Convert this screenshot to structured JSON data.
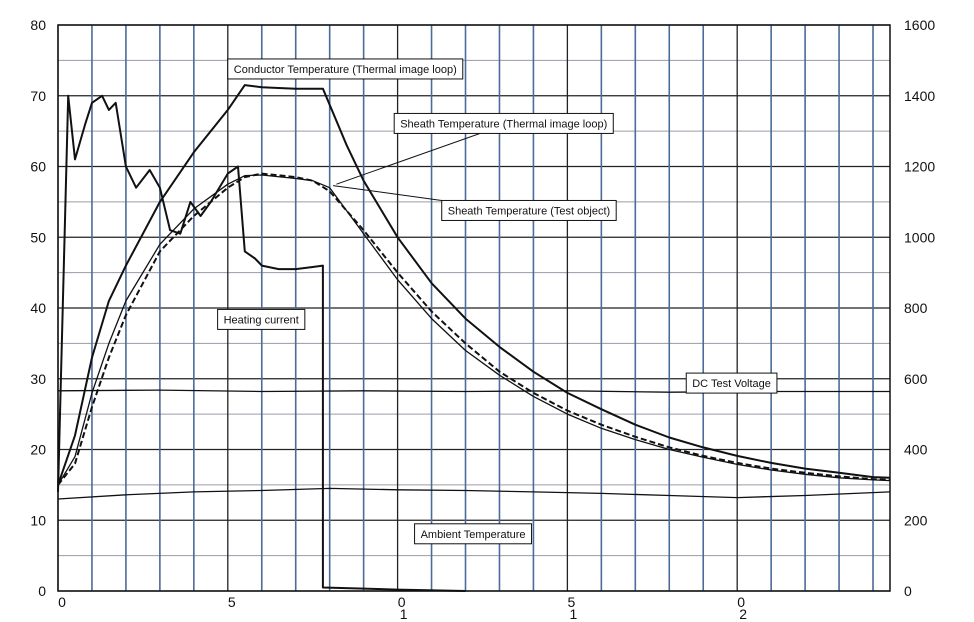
{
  "chart_data": {
    "type": "line",
    "title": "",
    "xlabel": "",
    "ylabel_left": "",
    "ylabel_right": "",
    "grid": true,
    "x_tick_labels": [
      "0",
      "5",
      "0",
      "5",
      "0"
    ],
    "x_tick_sublabels": [
      "",
      "",
      "1",
      "1",
      "2"
    ],
    "x_tick_values": [
      0,
      5,
      10,
      15,
      20
    ],
    "xlim": [
      0,
      24.5
    ],
    "ylim_left": [
      0,
      80
    ],
    "ylim_right": [
      0,
      1600
    ],
    "y_left_ticks": [
      "0",
      "10",
      "20",
      "30",
      "40",
      "50",
      "60",
      "70",
      "80"
    ],
    "y_right_ticks": [
      "0",
      "200",
      "400",
      "600",
      "800",
      "1000",
      "1200",
      "1400",
      "1600"
    ],
    "series": [
      {
        "name": "Conductor Temperature (Thermal image loop)",
        "axis": "left",
        "style": "solid",
        "x": [
          0,
          0.5,
          1,
          1.5,
          2,
          3,
          4,
          5,
          5.5,
          6,
          7,
          7.8,
          8.5,
          9,
          10,
          11,
          12,
          13,
          14,
          15,
          16,
          17,
          18,
          19,
          20,
          21,
          22,
          23,
          24,
          24.5
        ],
        "y": [
          15,
          22,
          33,
          41,
          46,
          55,
          62,
          68,
          71.5,
          71.2,
          71,
          71,
          63,
          58,
          50,
          43.5,
          38.5,
          34.5,
          31,
          28,
          25.7,
          23.5,
          21.7,
          20.3,
          19.1,
          18.1,
          17.3,
          16.7,
          16.1,
          16
        ]
      },
      {
        "name": "Sheath Temperature (Thermal image loop)",
        "axis": "left",
        "style": "dashed",
        "x": [
          0,
          0.5,
          1,
          1.5,
          2,
          3,
          4,
          5,
          5.5,
          6,
          7,
          7.5,
          8,
          9,
          10,
          11,
          12,
          13,
          14,
          15,
          16,
          17,
          18,
          19,
          20,
          21,
          22,
          23,
          24,
          24.5
        ],
        "y": [
          15,
          18,
          26,
          33,
          39,
          48,
          53,
          57,
          58.5,
          59,
          58.5,
          58,
          56.5,
          51,
          45,
          39.5,
          35,
          31,
          28,
          25.5,
          23.5,
          21.8,
          20.3,
          19.1,
          18.1,
          17.3,
          16.7,
          16.2,
          15.8,
          15.7
        ]
      },
      {
        "name": "Sheath Temperature (Test object)",
        "axis": "left",
        "style": "solid-thin",
        "x": [
          0,
          0.5,
          1,
          1.5,
          2,
          3,
          4,
          5,
          5.5,
          6,
          7,
          7.5,
          8,
          9,
          10,
          11,
          12,
          13,
          14,
          15,
          16,
          17,
          18,
          19,
          20,
          21,
          22,
          23,
          24,
          24.5
        ],
        "y": [
          15,
          19,
          28,
          35,
          41,
          49,
          54,
          57.5,
          58.7,
          58.8,
          58.3,
          58,
          57,
          50.5,
          44,
          38.5,
          34,
          30.5,
          27.5,
          25,
          23,
          21.4,
          20,
          18.9,
          17.9,
          17.1,
          16.5,
          16,
          15.7,
          15.6
        ]
      },
      {
        "name": "Heating current",
        "axis": "left",
        "style": "solid",
        "x": [
          0,
          0.3,
          0.5,
          0.8,
          1,
          1.3,
          1.5,
          1.7,
          2,
          2.3,
          2.7,
          3,
          3.3,
          3.6,
          3.9,
          4.2,
          4.5,
          5,
          5.3,
          5.5,
          5.8,
          6,
          6.5,
          7,
          7.5,
          7.8,
          7.8,
          10,
          12
        ],
        "y": [
          14,
          70,
          61,
          66,
          69,
          70,
          68,
          69,
          60,
          57,
          59.5,
          57,
          51,
          50.5,
          55,
          53,
          55,
          59,
          60,
          48,
          47,
          46,
          45.5,
          45.5,
          45.8,
          46,
          0.5,
          0.2,
          0
        ]
      },
      {
        "name": "DC Test Voltage",
        "axis": "left",
        "style": "solid-thin",
        "x": [
          0,
          3,
          6,
          9,
          12,
          15,
          18,
          21,
          24.5
        ],
        "y": [
          28.3,
          28.4,
          28.2,
          28.3,
          28.2,
          28.3,
          28.1,
          28.2,
          28.2
        ]
      },
      {
        "name": "Ambient Temperature",
        "axis": "left",
        "style": "solid-thin",
        "x": [
          0,
          2,
          4,
          6,
          8,
          10,
          12,
          14,
          16,
          18,
          20,
          22,
          24.5
        ],
        "y": [
          13,
          13.6,
          14,
          14.2,
          14.5,
          14.3,
          14.2,
          14,
          13.8,
          13.5,
          13.2,
          13.5,
          14
        ]
      }
    ],
    "annotations": [
      {
        "text": "Conductor Temperature (Thermal image loop)",
        "box_x": 5.0,
        "box_y": 75.2
      },
      {
        "text": "Sheath Temperature (Thermal image loop)",
        "box_x": 9.9,
        "box_y": 67.5
      },
      {
        "text": "Sheath Temperature (Test object)",
        "box_x": 11.3,
        "box_y": 55.2
      },
      {
        "text": "Heating current",
        "box_x": 4.7,
        "box_y": 39.8
      },
      {
        "text": "DC Test Voltage",
        "box_x": 18.5,
        "box_y": 30.8
      },
      {
        "text": "Ambient Temperature",
        "box_x": 10.5,
        "box_y": 9.5
      }
    ]
  }
}
